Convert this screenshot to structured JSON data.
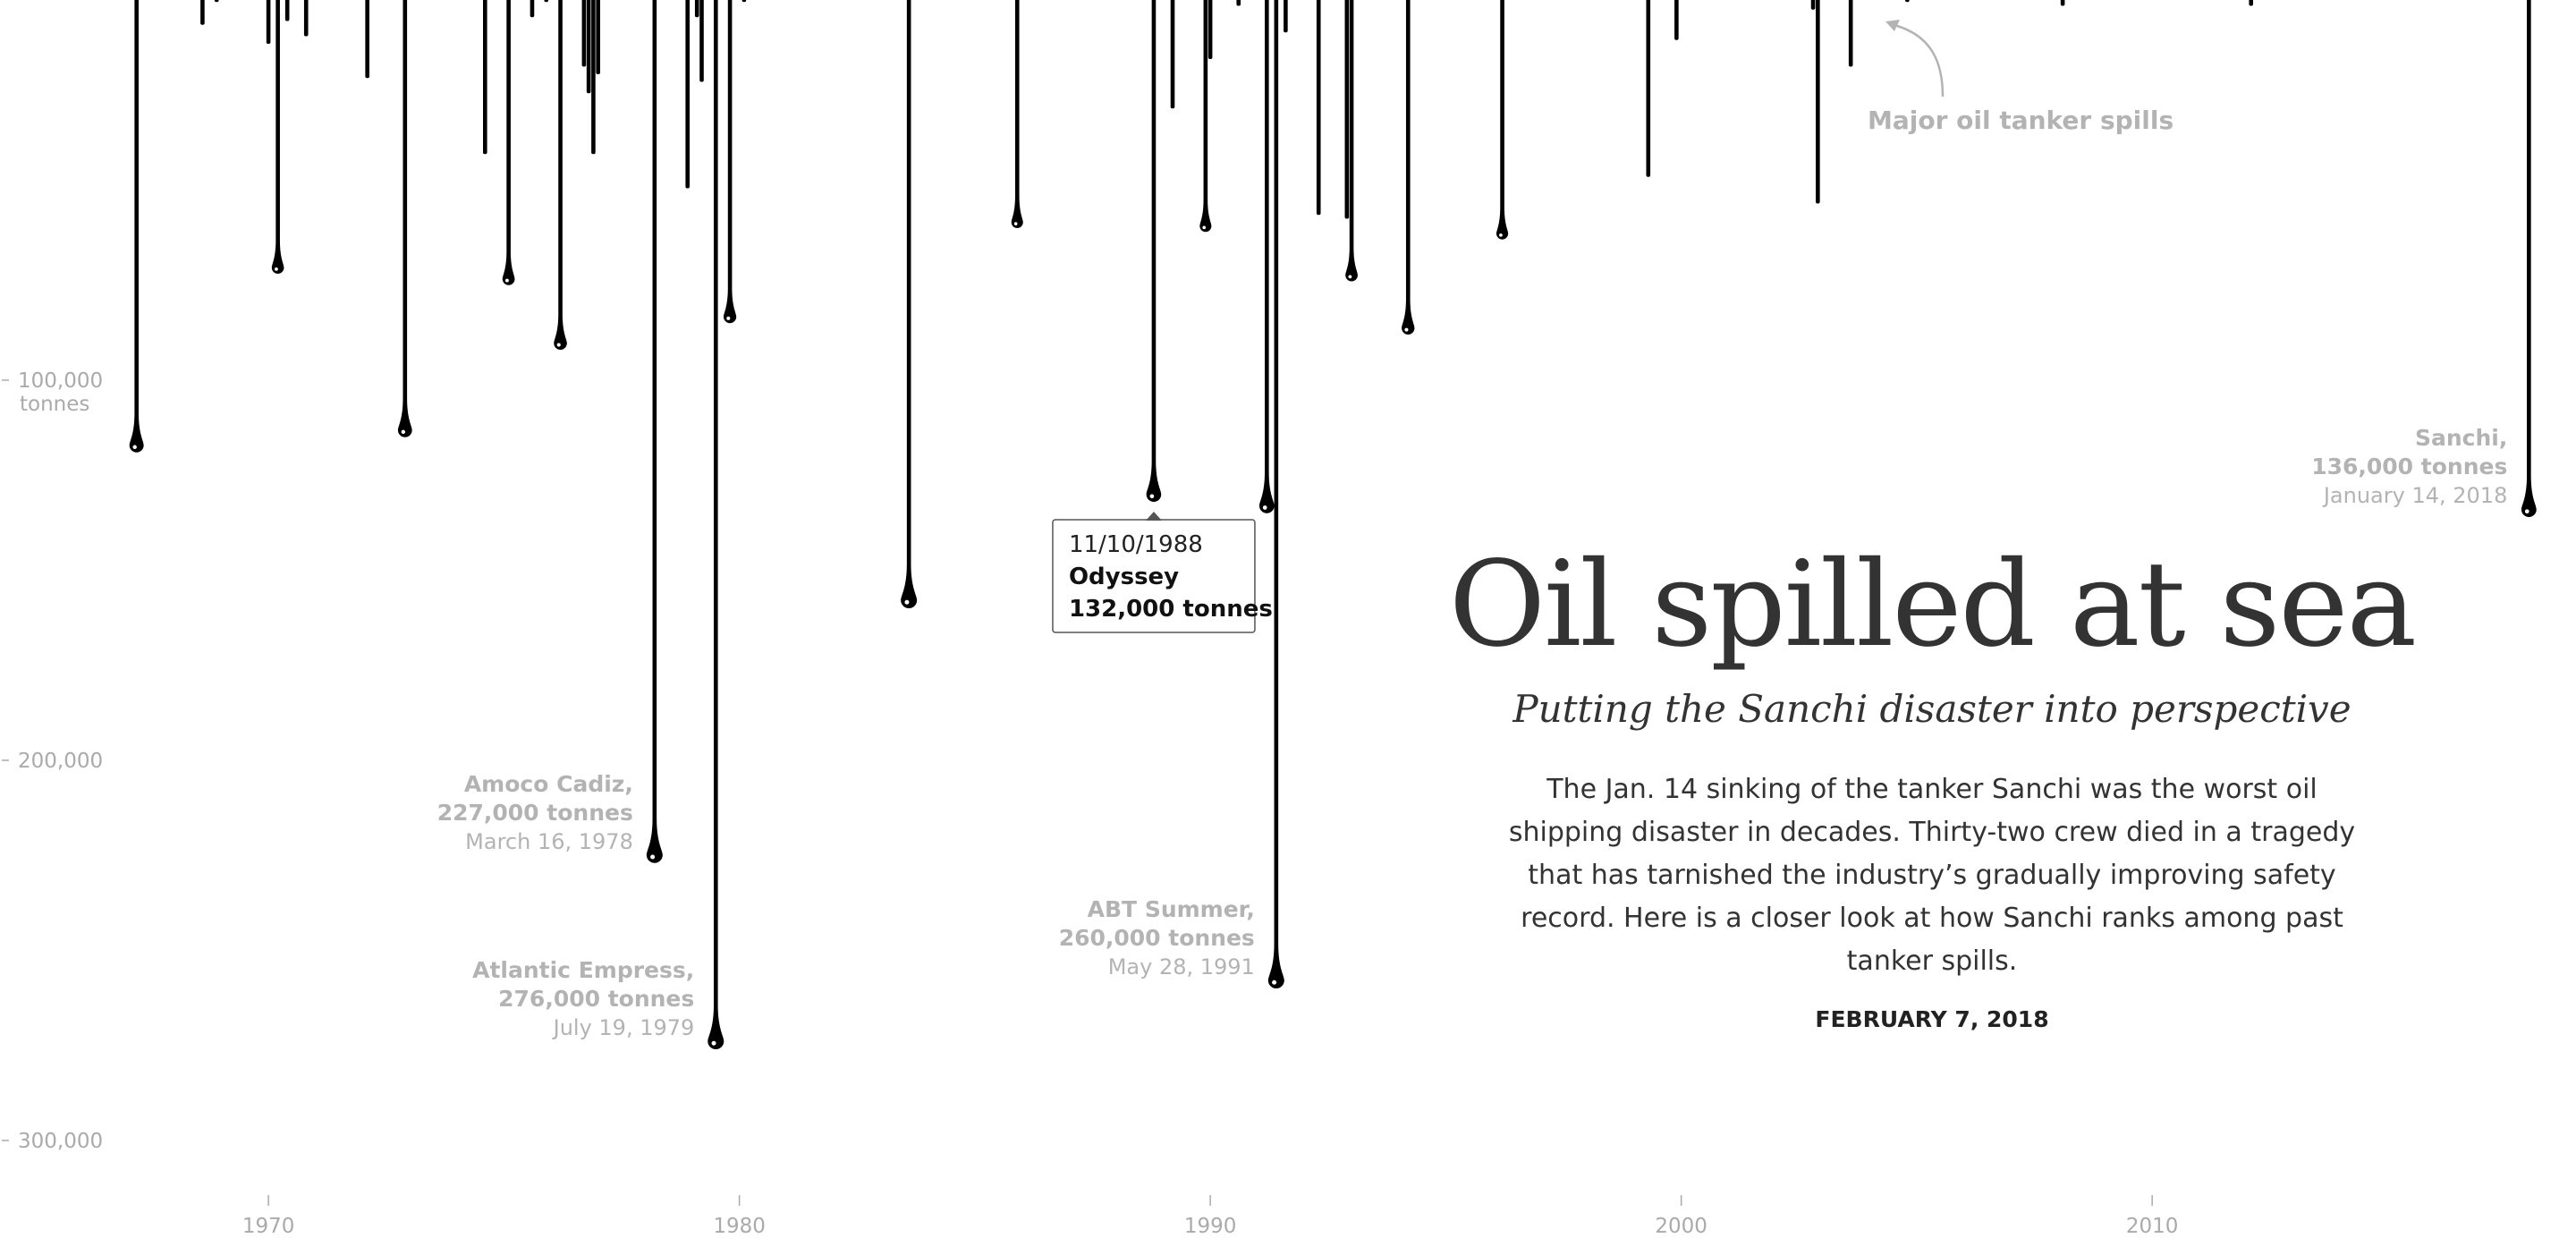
{
  "chart_data": {
    "type": "bar",
    "orientation": "vertical-drips",
    "title": "Oil spilled at sea",
    "subtitle": "Putting the Sanchi disaster into perspective",
    "xlabel": "",
    "ylabel": "",
    "xlim": [
      1964.3,
      2019
    ],
    "ylim": [
      0,
      330000
    ],
    "x_ticks": [
      1970,
      1980,
      1990,
      2000,
      2010
    ],
    "x_tick_labels": [
      "1970",
      "1980",
      "1990",
      "2000",
      "2010"
    ],
    "y_ticks": [
      100000,
      200000,
      300000
    ],
    "y_tick_labels": [
      "100,000",
      "200,000",
      "300,000"
    ],
    "y_unit_label": "tonnes",
    "series_label": "Major oil tanker spills",
    "spills": [
      {
        "x": 1967.2,
        "y": 119000
      },
      {
        "x": 1968.6,
        "y": 7000
      },
      {
        "x": 1968.9,
        "y": 1000
      },
      {
        "x": 1970.0,
        "y": 12000
      },
      {
        "x": 1970.2,
        "y": 72000
      },
      {
        "x": 1970.4,
        "y": 6000
      },
      {
        "x": 1970.8,
        "y": 10000
      },
      {
        "x": 1972.1,
        "y": 21000
      },
      {
        "x": 1972.9,
        "y": 115000
      },
      {
        "x": 1974.6,
        "y": 41000
      },
      {
        "x": 1975.1,
        "y": 75000
      },
      {
        "x": 1975.6,
        "y": 5000
      },
      {
        "x": 1975.9,
        "y": 1000
      },
      {
        "x": 1976.2,
        "y": 92000
      },
      {
        "x": 1976.7,
        "y": 18000
      },
      {
        "x": 1976.8,
        "y": 25000
      },
      {
        "x": 1976.9,
        "y": 41000
      },
      {
        "x": 1977.0,
        "y": 20000
      },
      {
        "x": 1978.2,
        "y": 227000,
        "name": "Amoco Cadiz,",
        "amount": "227,000 tonnes",
        "date": "March 16, 1978"
      },
      {
        "x": 1978.9,
        "y": 50000
      },
      {
        "x": 1979.1,
        "y": 5000
      },
      {
        "x": 1979.2,
        "y": 22000
      },
      {
        "x": 1979.5,
        "y": 276000,
        "name": "Atlantic Empress,",
        "amount": "276,000 tonnes",
        "date": "July 19, 1979"
      },
      {
        "x": 1979.8,
        "y": 85000
      },
      {
        "x": 1980.1,
        "y": 1000
      },
      {
        "x": 1983.6,
        "y": 160000
      },
      {
        "x": 1985.9,
        "y": 60000
      },
      {
        "x": 1988.8,
        "y": 132000,
        "name": "Odyssey",
        "amount": "132,000 tonnes",
        "date": "11/10/1988",
        "tooltip": true
      },
      {
        "x": 1989.2,
        "y": 29000
      },
      {
        "x": 1989.9,
        "y": 61000
      },
      {
        "x": 1990.0,
        "y": 16000
      },
      {
        "x": 1990.6,
        "y": 2000
      },
      {
        "x": 1991.2,
        "y": 135000
      },
      {
        "x": 1991.4,
        "y": 260000,
        "name": "ABT Summer,",
        "amount": "260,000 tonnes",
        "date": "May 28, 1991"
      },
      {
        "x": 1991.6,
        "y": 9000
      },
      {
        "x": 1992.3,
        "y": 57000
      },
      {
        "x": 1992.9,
        "y": 58000
      },
      {
        "x": 1993.0,
        "y": 74000
      },
      {
        "x": 1994.2,
        "y": 88000
      },
      {
        "x": 1996.2,
        "y": 63000
      },
      {
        "x": 1999.3,
        "y": 47000
      },
      {
        "x": 1999.9,
        "y": 11000
      },
      {
        "x": 2002.8,
        "y": 3000
      },
      {
        "x": 2002.9,
        "y": 54000
      },
      {
        "x": 2003.6,
        "y": 18000
      },
      {
        "x": 2004.8,
        "y": 1000
      },
      {
        "x": 2008.1,
        "y": 2000
      },
      {
        "x": 2012.1,
        "y": 2000
      },
      {
        "x": 2018.0,
        "y": 136000,
        "name": "Sanchi,",
        "amount": "136,000 tonnes",
        "date": "January 14, 2018"
      }
    ]
  },
  "headline": {
    "title": "Oil spilled at sea",
    "subtitle": "Putting the Sanchi disaster into perspective",
    "intro": "The Jan. 14 sinking of the tanker Sanchi was the worst oil shipping disaster in decades. Thirty-two crew died in a tragedy that has tarnished the industry’s gradually improving safety record. Here is a closer look at how Sanchi ranks among past tanker spills.",
    "date": "FEBRUARY 7, 2018"
  },
  "colors": {
    "drip": "#000000",
    "axis_text": "#aaaaaa",
    "label_text": "#b3b3b3",
    "headline_text": "#333333"
  }
}
